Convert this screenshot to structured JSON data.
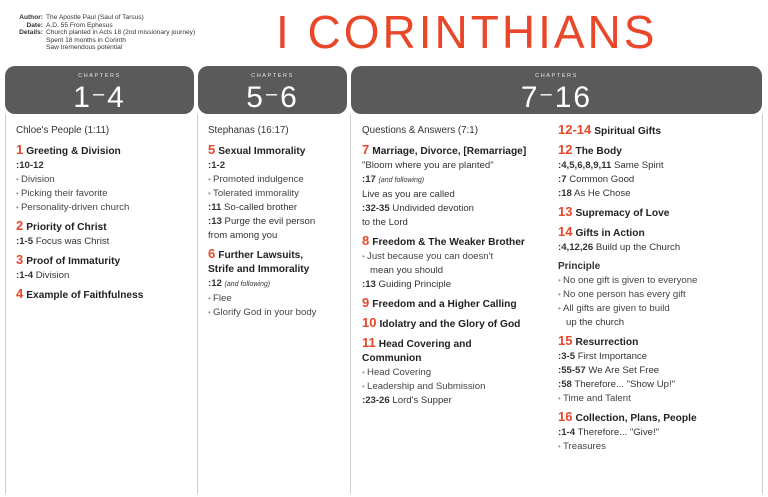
{
  "meta": {
    "author_k": "Author:",
    "author_v": "The Apostle Paul (Saul of Tarsus)",
    "date_k": "Date:",
    "date_v": "A.D. 55 From Ephesus",
    "details_k": "Details:",
    "details_1": "Church planted in Acts 18 (2nd missionary journey)",
    "details_2": "Spent 18 months in Corinth",
    "details_3": "Saw tremendous potential"
  },
  "title": "I CORINTHIANS",
  "bars": [
    {
      "label": "CHAPTERS",
      "from": "1",
      "to": "4"
    },
    {
      "label": "CHAPTERS",
      "from": "5",
      "to": "6"
    },
    {
      "label": "CHAPTERS",
      "from": "7",
      "to": "16"
    }
  ],
  "col1": {
    "sub": "Chloe's People (1:11)",
    "c1_n": "1",
    "c1_t": "Greeting & Division",
    "c1_ref": ":10-12",
    "c1_b1": "Division",
    "c1_b2": "Picking their favorite",
    "c1_b3": "Personality-driven church",
    "c2_n": "2",
    "c2_t": "Priority of Christ",
    "c2_ref": ":1-5",
    "c2_reft": "Focus was Christ",
    "c3_n": "3",
    "c3_t": "Proof of Immaturity",
    "c3_ref": ":1-4",
    "c3_reft": "Division",
    "c4_n": "4",
    "c4_t": "Example of Faithfulness"
  },
  "col2": {
    "sub": "Stephanas (16:17)",
    "c5_n": "5",
    "c5_t": "Sexual Immorality",
    "c5_ref": ":1-2",
    "c5_b1": "Promoted indulgence",
    "c5_b2": "Tolerated immorality",
    "c5_r2": ":11",
    "c5_r2t": "So-called brother",
    "c5_r3": ":13",
    "c5_r3t": "Purge the evil person",
    "c5_r3t2": "from among you",
    "c6_n": "6",
    "c6_t": "Further Lawsuits,",
    "c6_t2": "Strife and Immorality",
    "c6_ref": ":12",
    "c6_refi": "(and following)",
    "c6_b1": "Flee",
    "c6_b2": "Glorify God in your body"
  },
  "col3": {
    "sub": "Questions & Answers (7:1)",
    "c7_n": "7",
    "c7_t": "Marriage, Divorce, [Remarriage]",
    "c7_q": "\"Bloom where you are planted\"",
    "c7_r1": ":17",
    "c7_r1i": "(and following)",
    "c7_l1": "Live as you are called",
    "c7_r2": ":32-35",
    "c7_r2t": "Undivided devotion",
    "c7_l2": "to the Lord",
    "c8_n": "8",
    "c8_t": "Freedom & The Weaker Brother",
    "c8_b1": "Just because you can doesn't",
    "c8_b1b": "mean you should",
    "c8_r1": ":13",
    "c8_r1t": "Guiding Principle",
    "c9_n": "9",
    "c9_t": "Freedom and a Higher Calling",
    "c10_n": "10",
    "c10_t": "Idolatry and the Glory of God",
    "c11_n": "11",
    "c11_t": "Head Covering and",
    "c11_t2": "Communion",
    "c11_b1": "Head Covering",
    "c11_b2": "Leadership and Submission",
    "c11_r1": ":23-26",
    "c11_r1t": "Lord's Supper"
  },
  "col4": {
    "c12_14_n": "12-14",
    "c12_14_t": "Spiritual Gifts",
    "c12_n": "12",
    "c12_t": "The Body",
    "c12_r1": ":4,5,6,8,9,11",
    "c12_r1t": "Same Spirit",
    "c12_r2": ":7",
    "c12_r2t": "Common Good",
    "c12_r3": ":18",
    "c12_r3t": "As He Chose",
    "c13_n": "13",
    "c13_t": "Supremacy of Love",
    "c14_n": "14",
    "c14_t": "Gifts in Action",
    "c14_r1": ":4,12,26",
    "c14_r1t": "Build up the Church",
    "principle": "Principle",
    "p_b1": "No one gift is given to everyone",
    "p_b2": "No one person has every gift",
    "p_b3": "All gifts are given to build",
    "p_b3b": "up the church",
    "c15_n": "15",
    "c15_t": "Resurrection",
    "c15_r1": ":3-5",
    "c15_r1t": "First Importance",
    "c15_r2": ":55-57",
    "c15_r2t": "We Are Set Free",
    "c15_r3": ":58",
    "c15_r3t": "Therefore... \"Show Up!\"",
    "c15_b1": "Time and Talent",
    "c16_n": "16",
    "c16_t": "Collection, Plans, People",
    "c16_r1": ":1-4",
    "c16_r1t": "Therefore... \"Give!\"",
    "c16_b1": "Treasures"
  },
  "colors": {
    "accent": "#e8472a",
    "bar": "#5a5a5a"
  }
}
